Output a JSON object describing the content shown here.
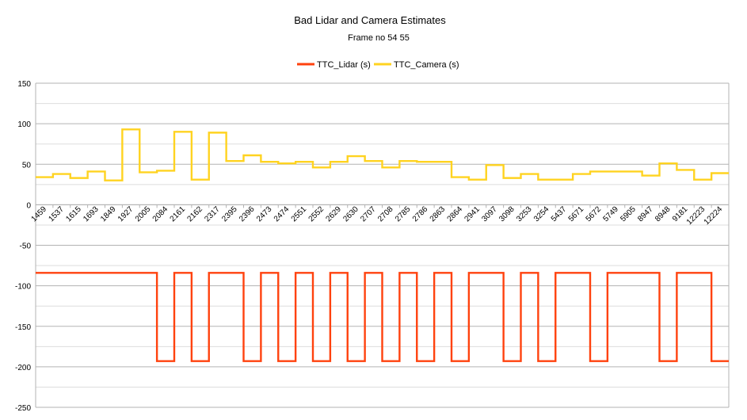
{
  "chart_data": {
    "type": "line",
    "step": true,
    "title": "Bad Lidar and Camera Estimates",
    "subtitle": "Frame no 54 55",
    "xlabel": "",
    "ylabel": "",
    "ylim": [
      -250,
      150
    ],
    "y_ticks": [
      150,
      100,
      50,
      0,
      -50,
      -100,
      -150,
      -200,
      -250
    ],
    "y_tick_labels": [
      "150",
      "100",
      "50",
      "0",
      "-50",
      "-100",
      "-150",
      "-200",
      "-250"
    ],
    "grid": true,
    "legend_position": "top",
    "categories": [
      "1459",
      "1537",
      "1615",
      "1693",
      "1849",
      "1927",
      "2005",
      "2084",
      "2161",
      "2162",
      "2317",
      "2395",
      "2396",
      "2473",
      "2474",
      "2551",
      "2552",
      "2629",
      "2630",
      "2707",
      "2708",
      "2785",
      "2786",
      "2863",
      "2864",
      "2941",
      "3097",
      "3098",
      "3253",
      "3254",
      "5437",
      "5671",
      "5672",
      "5749",
      "5905",
      "8947",
      "8948",
      "9181",
      "12223",
      "12224"
    ],
    "series": [
      {
        "name": "TTC_Lidar (s)",
        "color": "#ff420e",
        "values": [
          -84,
          -84,
          -84,
          -84,
          -84,
          -84,
          -84,
          -193,
          -84,
          -193,
          -84,
          -84,
          -193,
          -84,
          -193,
          -84,
          -193,
          -84,
          -193,
          -84,
          -193,
          -84,
          -193,
          -84,
          -193,
          -84,
          -84,
          -193,
          -84,
          -193,
          -84,
          -84,
          -193,
          -84,
          -84,
          -84,
          -193,
          -84,
          -84,
          -193
        ]
      },
      {
        "name": "TTC_Camera (s)",
        "color": "#ffd320",
        "values": [
          34,
          38,
          33,
          41,
          30,
          93,
          40,
          42,
          90,
          31,
          89,
          54,
          61,
          53,
          51,
          53,
          46,
          53,
          60,
          54,
          46,
          54,
          53,
          53,
          34,
          31,
          49,
          33,
          38,
          31,
          31,
          38,
          41,
          41,
          41,
          36,
          51,
          43,
          31,
          39
        ]
      }
    ]
  }
}
